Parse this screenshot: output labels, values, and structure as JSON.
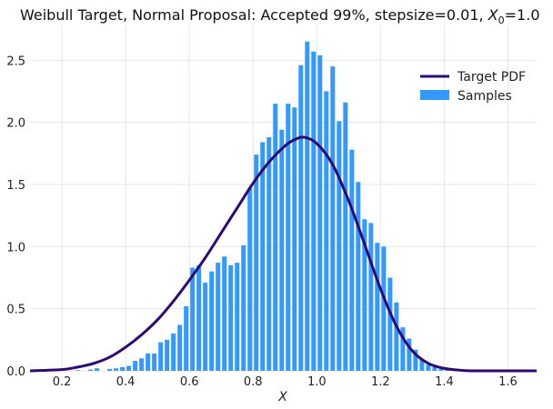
{
  "chart_data": {
    "type": "bar+line",
    "title": "Weibull Target, Normal Proposal: Accepted 99%, stepsize=0.01, X₀=1.0",
    "title_parts": {
      "main": "Weibull Target, Normal Proposal: Accepted 99%, stepsize=0.01, ",
      "var": "X",
      "sub": "0",
      "tail": "=1.0"
    },
    "xlabel": "X",
    "ylabel": "",
    "xlim": [
      0.1,
      1.69
    ],
    "ylim": [
      0,
      2.78
    ],
    "xticks": [
      0.2,
      0.4,
      0.6,
      0.8,
      1.0,
      1.2,
      1.4,
      1.6
    ],
    "xtick_labels": [
      "0.2",
      "0.4",
      "0.6",
      "0.8",
      "1.0",
      "1.2",
      "1.4",
      "1.6"
    ],
    "yticks": [
      0.0,
      0.5,
      1.0,
      1.5,
      2.0,
      2.5
    ],
    "ytick_labels": [
      "0.0",
      "0.5",
      "1.0",
      "1.5",
      "2.0",
      "2.5"
    ],
    "grid": true,
    "legend_position": "top-right",
    "series": [
      {
        "name": "Target PDF",
        "kind": "line",
        "color": "#2d0a73",
        "x": [
          0.1,
          0.2,
          0.25,
          0.3,
          0.35,
          0.4,
          0.45,
          0.5,
          0.55,
          0.6,
          0.65,
          0.7,
          0.75,
          0.8,
          0.85,
          0.9,
          0.93,
          0.96,
          1.0,
          1.05,
          1.1,
          1.15,
          1.2,
          1.25,
          1.3,
          1.35,
          1.4,
          1.45,
          1.5,
          1.6,
          1.69
        ],
        "y": [
          0.0,
          0.01,
          0.03,
          0.06,
          0.11,
          0.19,
          0.29,
          0.41,
          0.56,
          0.73,
          0.91,
          1.11,
          1.31,
          1.51,
          1.68,
          1.81,
          1.86,
          1.88,
          1.83,
          1.66,
          1.37,
          1.02,
          0.66,
          0.36,
          0.16,
          0.06,
          0.02,
          0.005,
          0.0,
          0.0,
          0.0
        ]
      },
      {
        "name": "Samples",
        "kind": "histogram",
        "color": "#3399ff",
        "bin_width": 0.02,
        "bin_centers": [
          0.25,
          0.27,
          0.29,
          0.31,
          0.33,
          0.35,
          0.37,
          0.39,
          0.41,
          0.43,
          0.45,
          0.47,
          0.49,
          0.51,
          0.53,
          0.55,
          0.57,
          0.59,
          0.61,
          0.63,
          0.65,
          0.67,
          0.69,
          0.71,
          0.73,
          0.75,
          0.77,
          0.79,
          0.81,
          0.83,
          0.85,
          0.87,
          0.89,
          0.91,
          0.93,
          0.95,
          0.97,
          0.99,
          1.01,
          1.03,
          1.05,
          1.07,
          1.09,
          1.11,
          1.13,
          1.15,
          1.17,
          1.19,
          1.21,
          1.23,
          1.25,
          1.27,
          1.29,
          1.31,
          1.33,
          1.35,
          1.37,
          1.39,
          1.41,
          1.43,
          1.45
        ],
        "values": [
          0.005,
          0.0,
          0.01,
          0.02,
          0.0,
          0.015,
          0.02,
          0.03,
          0.04,
          0.08,
          0.1,
          0.14,
          0.14,
          0.23,
          0.25,
          0.3,
          0.37,
          0.52,
          0.83,
          0.85,
          0.71,
          0.8,
          0.87,
          0.92,
          0.85,
          0.87,
          1.01,
          1.47,
          1.74,
          1.84,
          1.88,
          2.15,
          1.94,
          2.15,
          2.12,
          2.46,
          2.65,
          2.57,
          2.54,
          2.25,
          2.45,
          2.01,
          2.16,
          1.78,
          1.52,
          1.22,
          1.19,
          1.03,
          1.0,
          0.75,
          0.55,
          0.35,
          0.26,
          0.17,
          0.09,
          0.05,
          0.03,
          0.03,
          0.015,
          0.01,
          0.005
        ]
      }
    ]
  }
}
